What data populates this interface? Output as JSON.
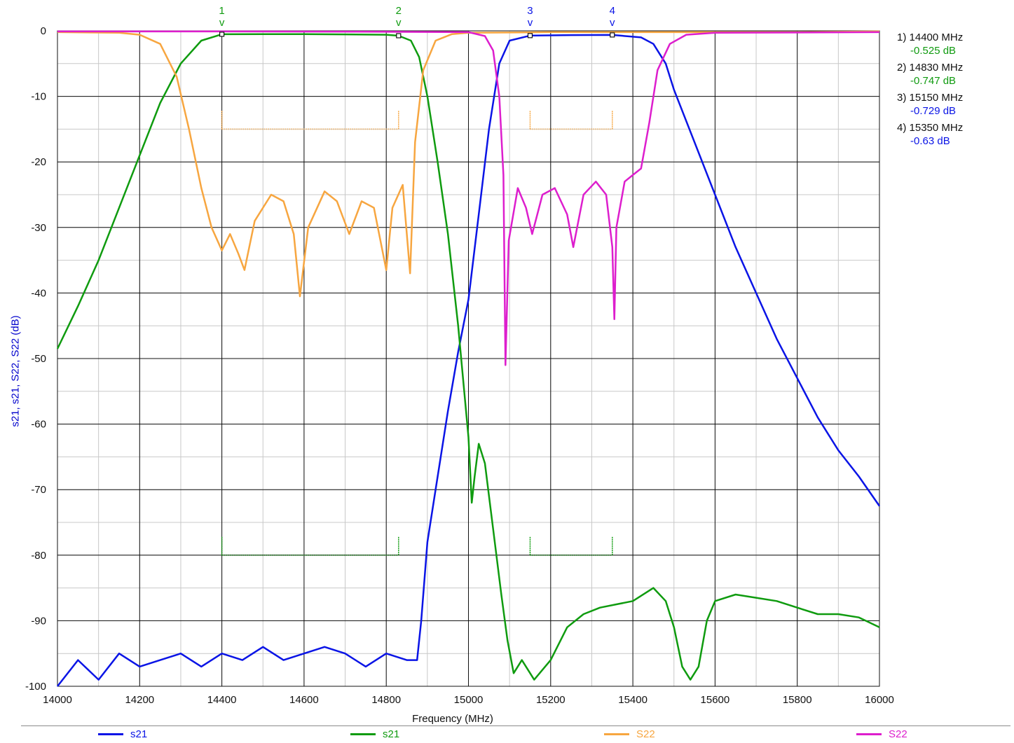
{
  "chart_data": {
    "type": "line",
    "xlabel": "Frequency (MHz)",
    "ylabel": "s21, s21, S22, S22 (dB)",
    "xlim": [
      14000,
      16000
    ],
    "ylim": [
      -100,
      0
    ],
    "x_ticks": [
      "14000",
      "14200",
      "14400",
      "14600",
      "14800",
      "15000",
      "15200",
      "15400",
      "15600",
      "15800",
      "16000"
    ],
    "y_ticks": [
      "0",
      "-10",
      "-20",
      "-30",
      "-40",
      "-50",
      "-60",
      "-70",
      "-80",
      "-90",
      "-100"
    ],
    "grid": true,
    "legend_position": "bottom",
    "series": [
      {
        "name": "s21",
        "color": "#0a14e6",
        "points": [
          [
            14000,
            -100
          ],
          [
            14050,
            -96
          ],
          [
            14100,
            -99
          ],
          [
            14150,
            -95
          ],
          [
            14200,
            -97
          ],
          [
            14250,
            -96
          ],
          [
            14300,
            -95
          ],
          [
            14350,
            -97
          ],
          [
            14400,
            -95
          ],
          [
            14450,
            -96
          ],
          [
            14500,
            -94
          ],
          [
            14550,
            -96
          ],
          [
            14600,
            -95
          ],
          [
            14650,
            -94
          ],
          [
            14700,
            -95
          ],
          [
            14750,
            -97
          ],
          [
            14800,
            -95
          ],
          [
            14850,
            -96
          ],
          [
            14875,
            -96
          ],
          [
            14885,
            -90
          ],
          [
            14900,
            -78
          ],
          [
            14920,
            -70
          ],
          [
            14950,
            -58
          ],
          [
            14975,
            -49
          ],
          [
            15000,
            -41
          ],
          [
            15025,
            -28
          ],
          [
            15050,
            -15
          ],
          [
            15075,
            -5
          ],
          [
            15100,
            -1.5
          ],
          [
            15150,
            -0.73
          ],
          [
            15250,
            -0.65
          ],
          [
            15350,
            -0.63
          ],
          [
            15420,
            -1
          ],
          [
            15450,
            -2
          ],
          [
            15480,
            -5
          ],
          [
            15500,
            -9
          ],
          [
            15550,
            -17
          ],
          [
            15600,
            -25
          ],
          [
            15650,
            -33
          ],
          [
            15700,
            -40
          ],
          [
            15750,
            -47
          ],
          [
            15800,
            -53
          ],
          [
            15850,
            -59
          ],
          [
            15900,
            -64
          ],
          [
            15950,
            -68
          ],
          [
            16000,
            -72.5
          ]
        ]
      },
      {
        "name": "s21",
        "color": "#0f9b0f",
        "points": [
          [
            14000,
            -48.5
          ],
          [
            14050,
            -42
          ],
          [
            14100,
            -35
          ],
          [
            14150,
            -27
          ],
          [
            14200,
            -19
          ],
          [
            14250,
            -11
          ],
          [
            14300,
            -5
          ],
          [
            14350,
            -1.5
          ],
          [
            14400,
            -0.52
          ],
          [
            14500,
            -0.5
          ],
          [
            14600,
            -0.5
          ],
          [
            14700,
            -0.55
          ],
          [
            14800,
            -0.6
          ],
          [
            14830,
            -0.75
          ],
          [
            14860,
            -1.5
          ],
          [
            14880,
            -4
          ],
          [
            14900,
            -10
          ],
          [
            14925,
            -20
          ],
          [
            14950,
            -31
          ],
          [
            14975,
            -45
          ],
          [
            15000,
            -62
          ],
          [
            15008,
            -72
          ],
          [
            15015,
            -68
          ],
          [
            15025,
            -63
          ],
          [
            15040,
            -66
          ],
          [
            15060,
            -76
          ],
          [
            15080,
            -86
          ],
          [
            15095,
            -93
          ],
          [
            15110,
            -98
          ],
          [
            15130,
            -96
          ],
          [
            15160,
            -99
          ],
          [
            15200,
            -96
          ],
          [
            15240,
            -91
          ],
          [
            15280,
            -89
          ],
          [
            15320,
            -88
          ],
          [
            15360,
            -87.5
          ],
          [
            15400,
            -87
          ],
          [
            15450,
            -85
          ],
          [
            15480,
            -87
          ],
          [
            15500,
            -91
          ],
          [
            15520,
            -97
          ],
          [
            15540,
            -99
          ],
          [
            15560,
            -97
          ],
          [
            15580,
            -90
          ],
          [
            15600,
            -87
          ],
          [
            15650,
            -86
          ],
          [
            15700,
            -86.5
          ],
          [
            15750,
            -87
          ],
          [
            15800,
            -88
          ],
          [
            15850,
            -89
          ],
          [
            15900,
            -89
          ],
          [
            15950,
            -89.5
          ],
          [
            16000,
            -91
          ]
        ]
      },
      {
        "name": "S22",
        "color": "#f7a640",
        "points": [
          [
            14000,
            -0.2
          ],
          [
            14150,
            -0.3
          ],
          [
            14200,
            -0.6
          ],
          [
            14250,
            -2
          ],
          [
            14290,
            -7
          ],
          [
            14320,
            -15
          ],
          [
            14350,
            -24
          ],
          [
            14375,
            -30
          ],
          [
            14400,
            -33.5
          ],
          [
            14420,
            -31
          ],
          [
            14440,
            -34
          ],
          [
            14455,
            -36.5
          ],
          [
            14480,
            -29
          ],
          [
            14520,
            -25
          ],
          [
            14550,
            -26
          ],
          [
            14575,
            -31
          ],
          [
            14590,
            -40.5
          ],
          [
            14610,
            -30
          ],
          [
            14650,
            -24.5
          ],
          [
            14680,
            -26
          ],
          [
            14710,
            -31
          ],
          [
            14740,
            -26
          ],
          [
            14770,
            -27
          ],
          [
            14800,
            -36.5
          ],
          [
            14815,
            -27
          ],
          [
            14840,
            -23.5
          ],
          [
            14858,
            -37
          ],
          [
            14870,
            -17
          ],
          [
            14890,
            -6
          ],
          [
            14920,
            -1.5
          ],
          [
            14960,
            -0.5
          ],
          [
            15000,
            -0.3
          ],
          [
            15200,
            -0.2
          ],
          [
            15400,
            -0.2
          ],
          [
            15500,
            -0.2
          ],
          [
            15600,
            -0.2
          ],
          [
            15800,
            -0.2
          ],
          [
            16000,
            -0.1
          ]
        ]
      },
      {
        "name": "S22",
        "color": "#dd1ecd",
        "points": [
          [
            14000,
            -0.1
          ],
          [
            14400,
            -0.1
          ],
          [
            14800,
            -0.15
          ],
          [
            15000,
            -0.2
          ],
          [
            15040,
            -0.8
          ],
          [
            15060,
            -3
          ],
          [
            15075,
            -10
          ],
          [
            15085,
            -22
          ],
          [
            15090,
            -51
          ],
          [
            15098,
            -32
          ],
          [
            15120,
            -24
          ],
          [
            15140,
            -27
          ],
          [
            15155,
            -31
          ],
          [
            15180,
            -25
          ],
          [
            15210,
            -24
          ],
          [
            15240,
            -28
          ],
          [
            15255,
            -33
          ],
          [
            15280,
            -25
          ],
          [
            15310,
            -23
          ],
          [
            15335,
            -25
          ],
          [
            15350,
            -33
          ],
          [
            15355,
            -44
          ],
          [
            15360,
            -30
          ],
          [
            15380,
            -23
          ],
          [
            15400,
            -22
          ],
          [
            15420,
            -21
          ],
          [
            15440,
            -14
          ],
          [
            15460,
            -6
          ],
          [
            15490,
            -2
          ],
          [
            15530,
            -0.6
          ],
          [
            15600,
            -0.3
          ],
          [
            16000,
            -0.2
          ]
        ]
      }
    ],
    "specs": [
      {
        "color": "#f7a640",
        "level": -15,
        "ranges": [
          [
            14400,
            14830
          ],
          [
            15150,
            15350
          ]
        ]
      },
      {
        "color": "#0f9b0f",
        "level": -80,
        "ranges": [
          [
            14400,
            14830
          ],
          [
            15150,
            15350
          ]
        ]
      }
    ],
    "markers": [
      {
        "id": "1",
        "freq": 14400,
        "value": -0.525,
        "label": "1) 14400 MHz",
        "value_label": "-0.525 dB",
        "color": "#0f9b0f"
      },
      {
        "id": "2",
        "freq": 14830,
        "value": -0.747,
        "label": "2) 14830 MHz",
        "value_label": "-0.747 dB",
        "color": "#0f9b0f"
      },
      {
        "id": "3",
        "freq": 15150,
        "value": -0.729,
        "label": "3) 15150 MHz",
        "value_label": "-0.729 dB",
        "color": "#0a14e6"
      },
      {
        "id": "4",
        "freq": 15350,
        "value": -0.63,
        "label": "4) 15350 MHz",
        "value_label": "-0.63 dB",
        "color": "#0a14e6"
      }
    ],
    "marker_glyph": "v"
  }
}
